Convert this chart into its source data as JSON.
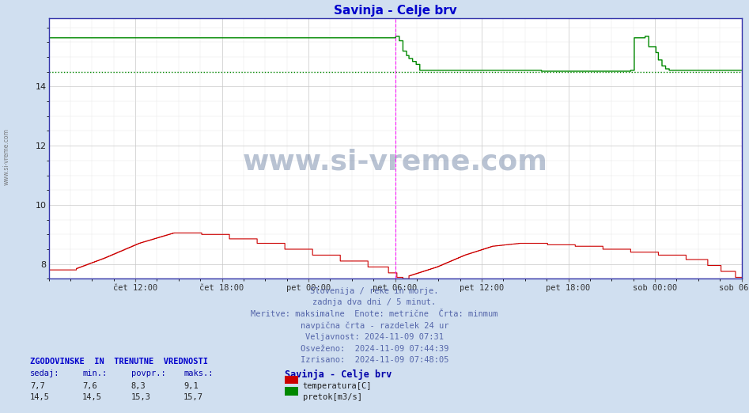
{
  "title": "Savinja - Celje brv",
  "title_color": "#0000cc",
  "bg_color": "#d0dff0",
  "plot_bg_color": "#ffffff",
  "grid_color_major": "#c8c8c8",
  "grid_color_minor": "#e4e4e4",
  "temp_color": "#cc0000",
  "flow_color": "#008800",
  "vline_color": "#ff00ff",
  "hline_avg_color": "#008800",
  "ylim_min": 7.5,
  "ylim_max": 16.3,
  "yticks": [
    8,
    10,
    12,
    14
  ],
  "x_tick_labels": [
    "čet 12:00",
    "čet 18:00",
    "pet 00:00",
    "pet 06:00",
    "pet 12:00",
    "pet 18:00",
    "sob 00:00",
    "sob 06:00"
  ],
  "x_tick_positions": [
    0.125,
    0.25,
    0.375,
    0.5,
    0.625,
    0.75,
    0.875,
    1.0
  ],
  "vline_positions": [
    0.5,
    1.0
  ],
  "avg_flow_line": 14.5,
  "watermark": "www.si-vreme.com",
  "info_lines": [
    "Slovenija / reke in morje.",
    "zadnja dva dni / 5 minut.",
    "Meritve: maksimalne  Enote: metrične  Črta: minmum",
    "navpična črta - razdelek 24 ur",
    "Veljavnost: 2024-11-09 07:31",
    "Osveženo:  2024-11-09 07:44:39",
    "Izrisano:  2024-11-09 07:48:05"
  ],
  "legend_title": "Savinja - Celje brv",
  "legend_entries": [
    {
      "label": "temperatura[C]",
      "color": "#cc0000"
    },
    {
      "label": "pretok[m3/s]",
      "color": "#008800"
    }
  ],
  "table_header": "ZGODOVINSKE  IN  TRENUTNE  VREDNOSTI",
  "table_cols": [
    "sedaj:",
    "min.:",
    "povpr.:",
    "maks.:"
  ],
  "table_row1": [
    "7,7",
    "7,6",
    "8,3",
    "9,1"
  ],
  "table_row2": [
    "14,5",
    "14,5",
    "15,3",
    "15,7"
  ],
  "sidebar_text": "www.si-vreme.com"
}
